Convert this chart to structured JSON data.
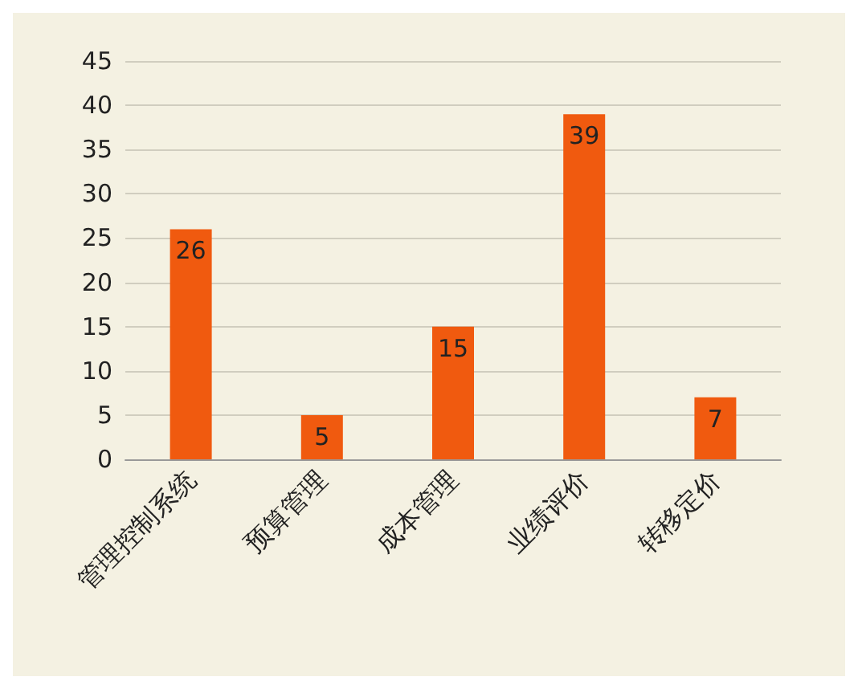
{
  "chart_data": {
    "type": "bar",
    "categories": [
      "管理控制系统",
      "预算管理",
      "成本管理",
      "业绩评价",
      "转移定价"
    ],
    "values": [
      26,
      5,
      15,
      39,
      7
    ],
    "color": "#f05a0f",
    "ylim": [
      0,
      45
    ],
    "yticks": [
      0,
      5,
      10,
      15,
      20,
      25,
      30,
      35,
      40,
      45
    ],
    "grid": "y",
    "data_labels": true
  }
}
